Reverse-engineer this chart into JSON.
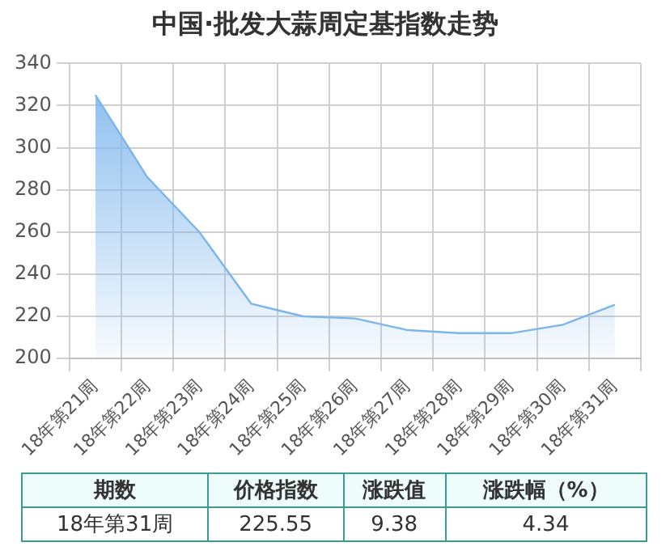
{
  "chart_data": [
    {
      "type": "area",
      "title": "中国·批发大蒜周定基指数走势",
      "categories": [
        "18年第21周",
        "18年第22周",
        "18年第23周",
        "18年第24周",
        "18年第25周",
        "18年第26周",
        "18年第27周",
        "18年第28周",
        "18年第29周",
        "18年第30周",
        "18年第31周"
      ],
      "series": [
        {
          "color": "#7cb5ec",
          "values": [
            325,
            286,
            260,
            226,
            220,
            219,
            213.5,
            212,
            212,
            216,
            225.55
          ]
        }
      ],
      "ylim": [
        200,
        340
      ],
      "yticks": [
        200,
        220,
        240,
        260,
        280,
        300,
        320,
        340
      ],
      "grid": true,
      "legend": false,
      "marker": "none"
    },
    {
      "type": "other",
      "annotations": [
        "期数",
        "价格指数",
        "涨跌值",
        "涨跌幅（%）",
        "18年第31周",
        "225.55",
        "9.38",
        "4.34"
      ]
    }
  ]
}
